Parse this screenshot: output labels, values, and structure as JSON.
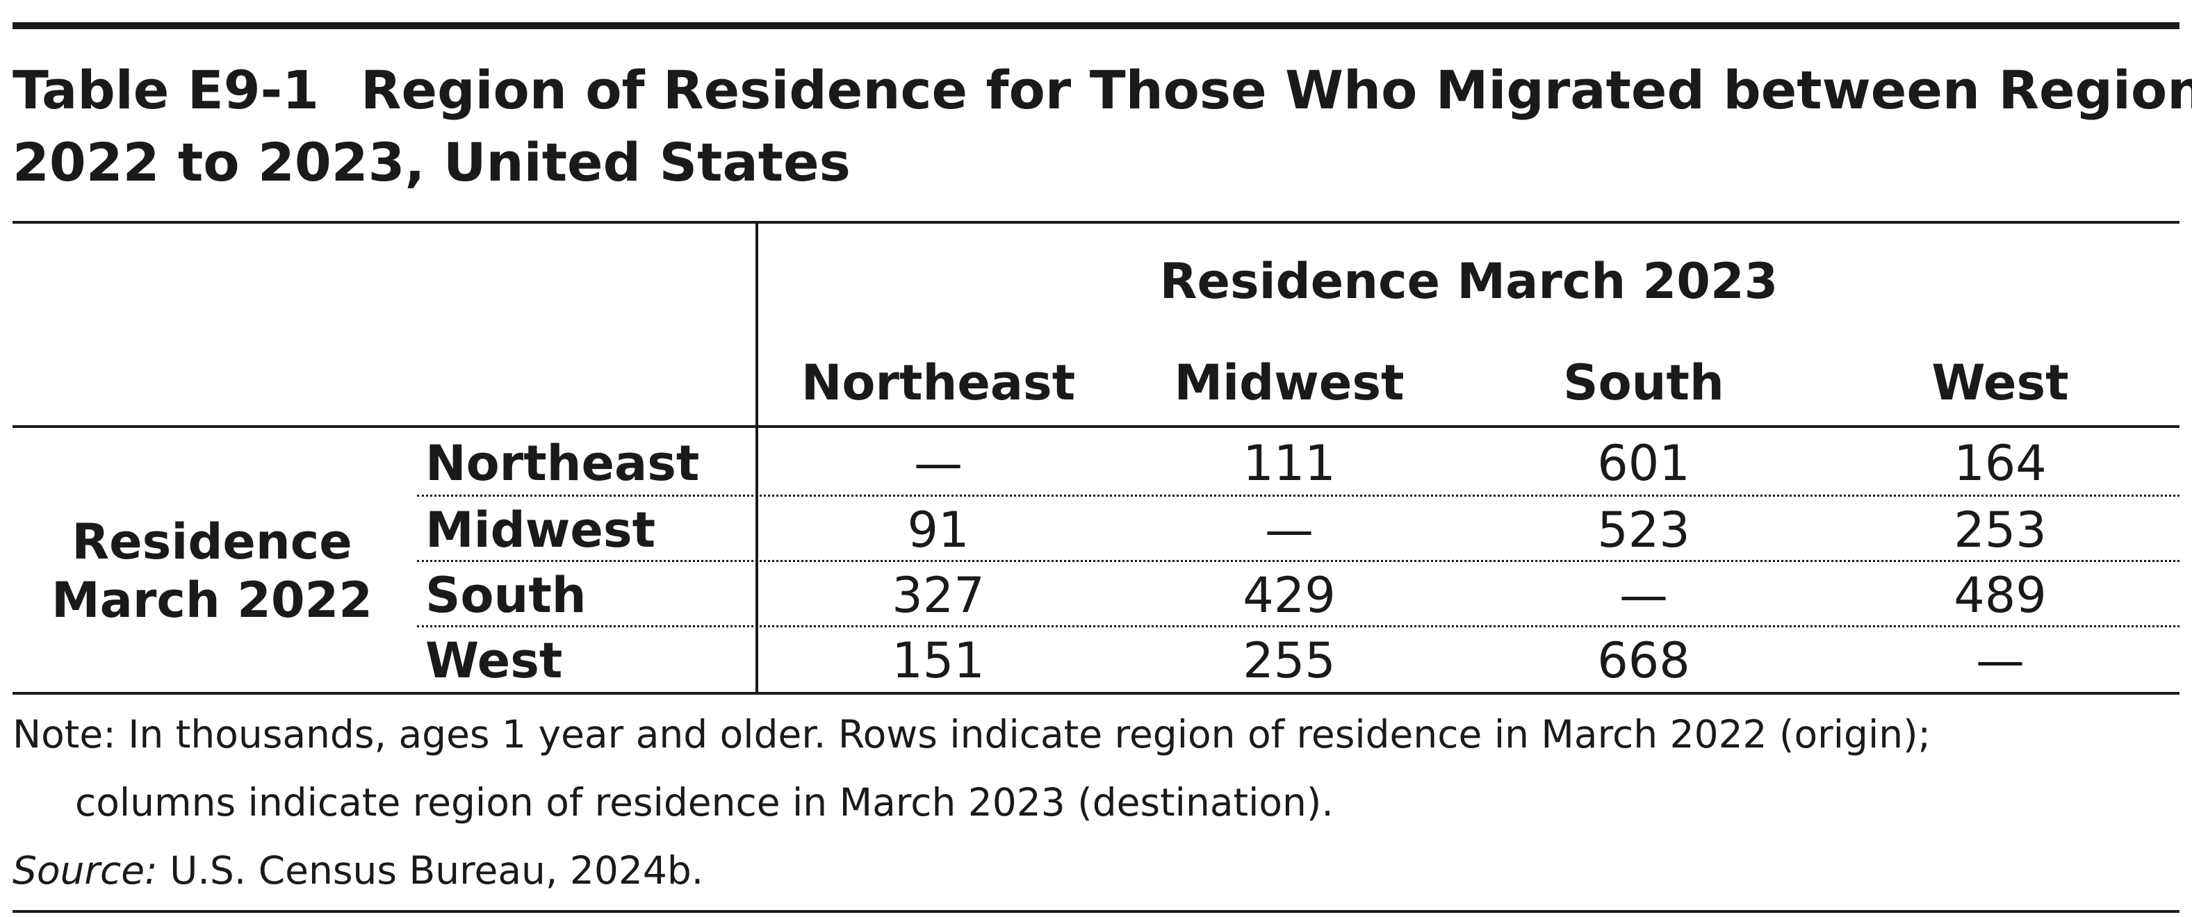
{
  "table": {
    "title_line1_id": "Table E9-1",
    "title_line1_text": "Region of Residence for Those Who Migrated between Regions,",
    "title_line2": "2022 to 2023, United States",
    "column_group_header": "Residence March 2023",
    "row_group_header_line1": "Residence",
    "row_group_header_line2": "March 2022",
    "columns": [
      "Northeast",
      "Midwest",
      "South",
      "West"
    ],
    "rows": [
      {
        "label": "Northeast",
        "cells": [
          "—",
          "111",
          "601",
          "164"
        ]
      },
      {
        "label": "Midwest",
        "cells": [
          "91",
          "—",
          "523",
          "253"
        ]
      },
      {
        "label": "South",
        "cells": [
          "327",
          "429",
          "—",
          "489"
        ]
      },
      {
        "label": "West",
        "cells": [
          "151",
          "255",
          "668",
          "—"
        ]
      }
    ]
  },
  "notes": {
    "note_line1": "Note: In thousands, ages 1 year and older. Rows indicate region of residence in March 2022 (origin);",
    "note_line2": "columns indicate region of residence in March 2023 (destination).",
    "source_label": "Source:",
    "source_text": " U.S. Census Bureau, 2024b."
  }
}
